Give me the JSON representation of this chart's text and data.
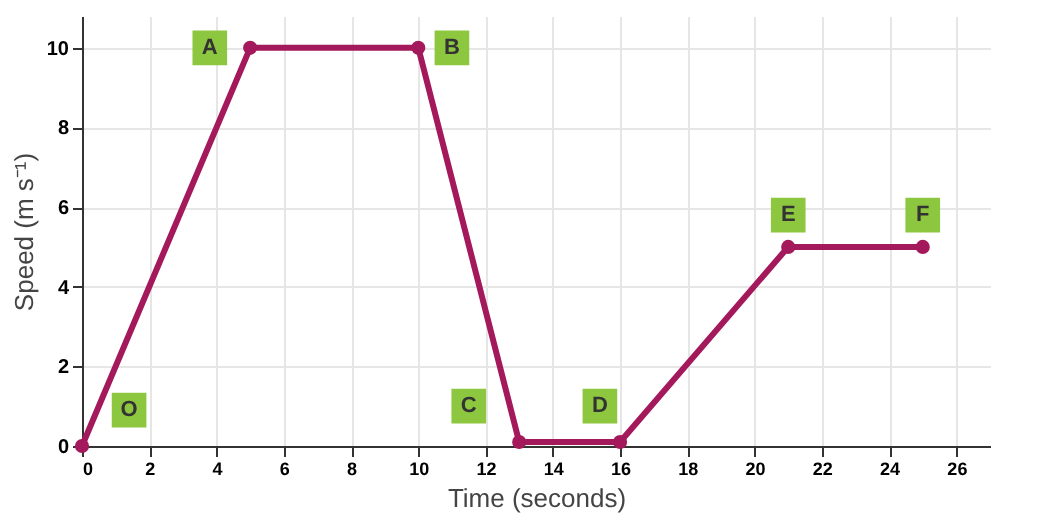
{
  "chart_data": {
    "type": "line",
    "xlabel": "Time (seconds)",
    "ylabel": "Speed (m s⁻¹)",
    "x": [
      0,
      5,
      10,
      13,
      16,
      21,
      25
    ],
    "series": [
      {
        "color": "#a3195b",
        "values": [
          0,
          10,
          10,
          0.1,
          0.1,
          5,
          5
        ]
      }
    ],
    "xlim": [
      0,
      27
    ],
    "ylim": [
      0,
      10.8
    ],
    "xticks": [
      0,
      2,
      4,
      6,
      8,
      10,
      12,
      14,
      16,
      18,
      20,
      22,
      24,
      26
    ],
    "yticks": [
      0,
      2,
      4,
      6,
      8,
      10
    ],
    "grid": true,
    "marker": "circle",
    "line_style": "solid",
    "annotations": [
      {
        "text": "O",
        "x": 1.4,
        "y": 0.9
      },
      {
        "text": "A",
        "x": 3.8,
        "y": 10
      },
      {
        "text": "B",
        "x": 11,
        "y": 10
      },
      {
        "text": "C",
        "x": 11.5,
        "y": 1
      },
      {
        "text": "D",
        "x": 15.4,
        "y": 1
      },
      {
        "text": "E",
        "x": 21,
        "y": 5.8
      },
      {
        "text": "F",
        "x": 25,
        "y": 5.8
      }
    ]
  }
}
